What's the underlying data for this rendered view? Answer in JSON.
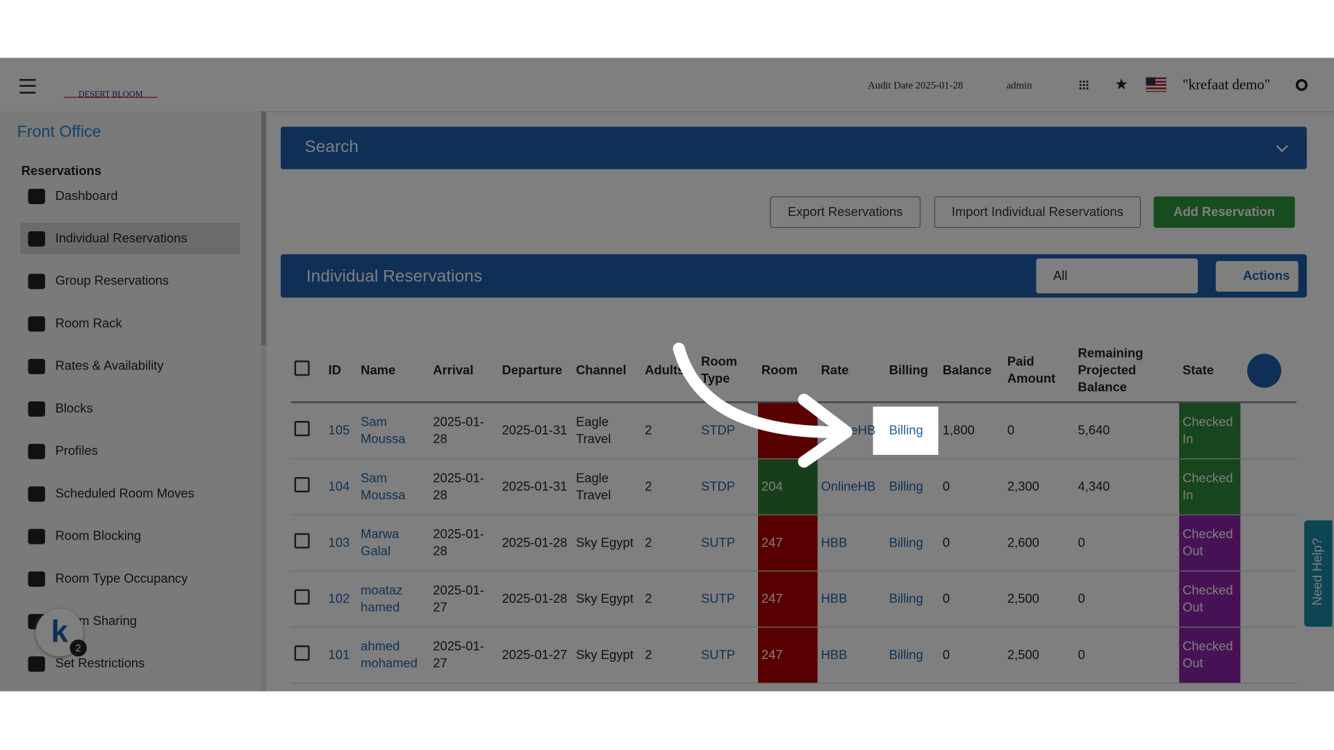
{
  "header": {
    "audit": "Audit Date 2025-01-28",
    "user": "admin",
    "hotel": "\"krefaat demo\"",
    "logo": "DESERT BLOOM"
  },
  "sidebar": {
    "section": "Front Office",
    "group": "Reservations",
    "items": [
      "Dashboard",
      "Individual Reservations",
      "Group Reservations",
      "Room Rack",
      "Rates & Availability",
      "Blocks",
      "Profiles",
      "Scheduled Room Moves",
      "Room Blocking",
      "Room Type Occupancy",
      "Room Sharing",
      "Set Restrictions"
    ]
  },
  "search": "Search",
  "buttons": [
    "Export Reservations",
    "Import Individual Reservations",
    "Add Reservation"
  ],
  "panel": {
    "title": "Individual Reservations",
    "filter": "All",
    "actions": "Actions"
  },
  "table": {
    "columns": [
      "ID",
      "Name",
      "Arrival",
      "Departure",
      "Channel",
      "Adults",
      "Room Type",
      "Room",
      "Rate",
      "Billing",
      "Balance",
      "Paid Amount",
      "Remaining Projected Balance",
      "State"
    ],
    "rows": [
      [
        "105",
        "Sam Moussa",
        "2025-01-28",
        "2025-01-31",
        "Eagle Travel",
        "2",
        "STDP",
        null,
        "OnlineHB",
        "Billing",
        "1,800",
        "0",
        "5,640",
        "Checked In"
      ],
      [
        "104",
        "Sam Moussa",
        "2025-01-28",
        "2025-01-31",
        "Eagle Travel",
        "2",
        "STDP",
        "204",
        "OnlineHB",
        "Billing",
        "0",
        "2,300",
        "4,340",
        "Checked In"
      ],
      [
        "103",
        "Marwa Galal",
        "2025-01-28",
        "2025-01-28",
        "Sky Egypt",
        "2",
        "SUTP",
        "247",
        "HBB",
        "Billing",
        "0",
        "2,600",
        "0",
        "Checked Out"
      ],
      [
        "102",
        "moataz hamed",
        "2025-01-27",
        "2025-01-28",
        "Sky Egypt",
        "2",
        "SUTP",
        "247",
        "HBB",
        "Billing",
        "0",
        "2,500",
        "0",
        "Checked Out"
      ],
      [
        "101",
        "ahmed mohamed",
        "2025-01-27",
        "2025-01-27",
        "Sky Egypt",
        "2",
        "SUTP",
        "247",
        "HBB",
        "Billing",
        "0",
        "2,500",
        "0",
        "Checked Out"
      ]
    ]
  },
  "help": "Need Help?",
  "badge": "2"
}
